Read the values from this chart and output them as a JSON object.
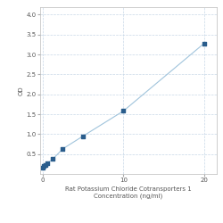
{
  "x_values": [
    0,
    0.156,
    0.313,
    0.625,
    1.25,
    2.5,
    5,
    10,
    20
  ],
  "y_values": [
    0.158,
    0.192,
    0.223,
    0.27,
    0.37,
    0.63,
    0.95,
    1.58,
    3.28
  ],
  "line_color": "#a0c4dc",
  "marker_color": "#2a5d8c",
  "marker_style": "s",
  "marker_size": 3.5,
  "xlabel_line1": "Rat Potassium Chloride Cotransporters 1",
  "xlabel_line2": "Concentration (ng/ml)",
  "ylabel": "OD",
  "xlim": [
    -0.3,
    21.5
  ],
  "ylim": [
    0,
    4.2
  ],
  "xticks": [
    0,
    10,
    20
  ],
  "yticks": [
    0.5,
    1.0,
    1.5,
    2.0,
    2.5,
    3.0,
    3.5,
    4.0
  ],
  "grid_color": "#c8d8e8",
  "grid_linestyle": "--",
  "background_color": "#ffffff",
  "plot_bg_color": "#ffffff",
  "label_fontsize": 5,
  "tick_fontsize": 5,
  "line_width": 0.8
}
